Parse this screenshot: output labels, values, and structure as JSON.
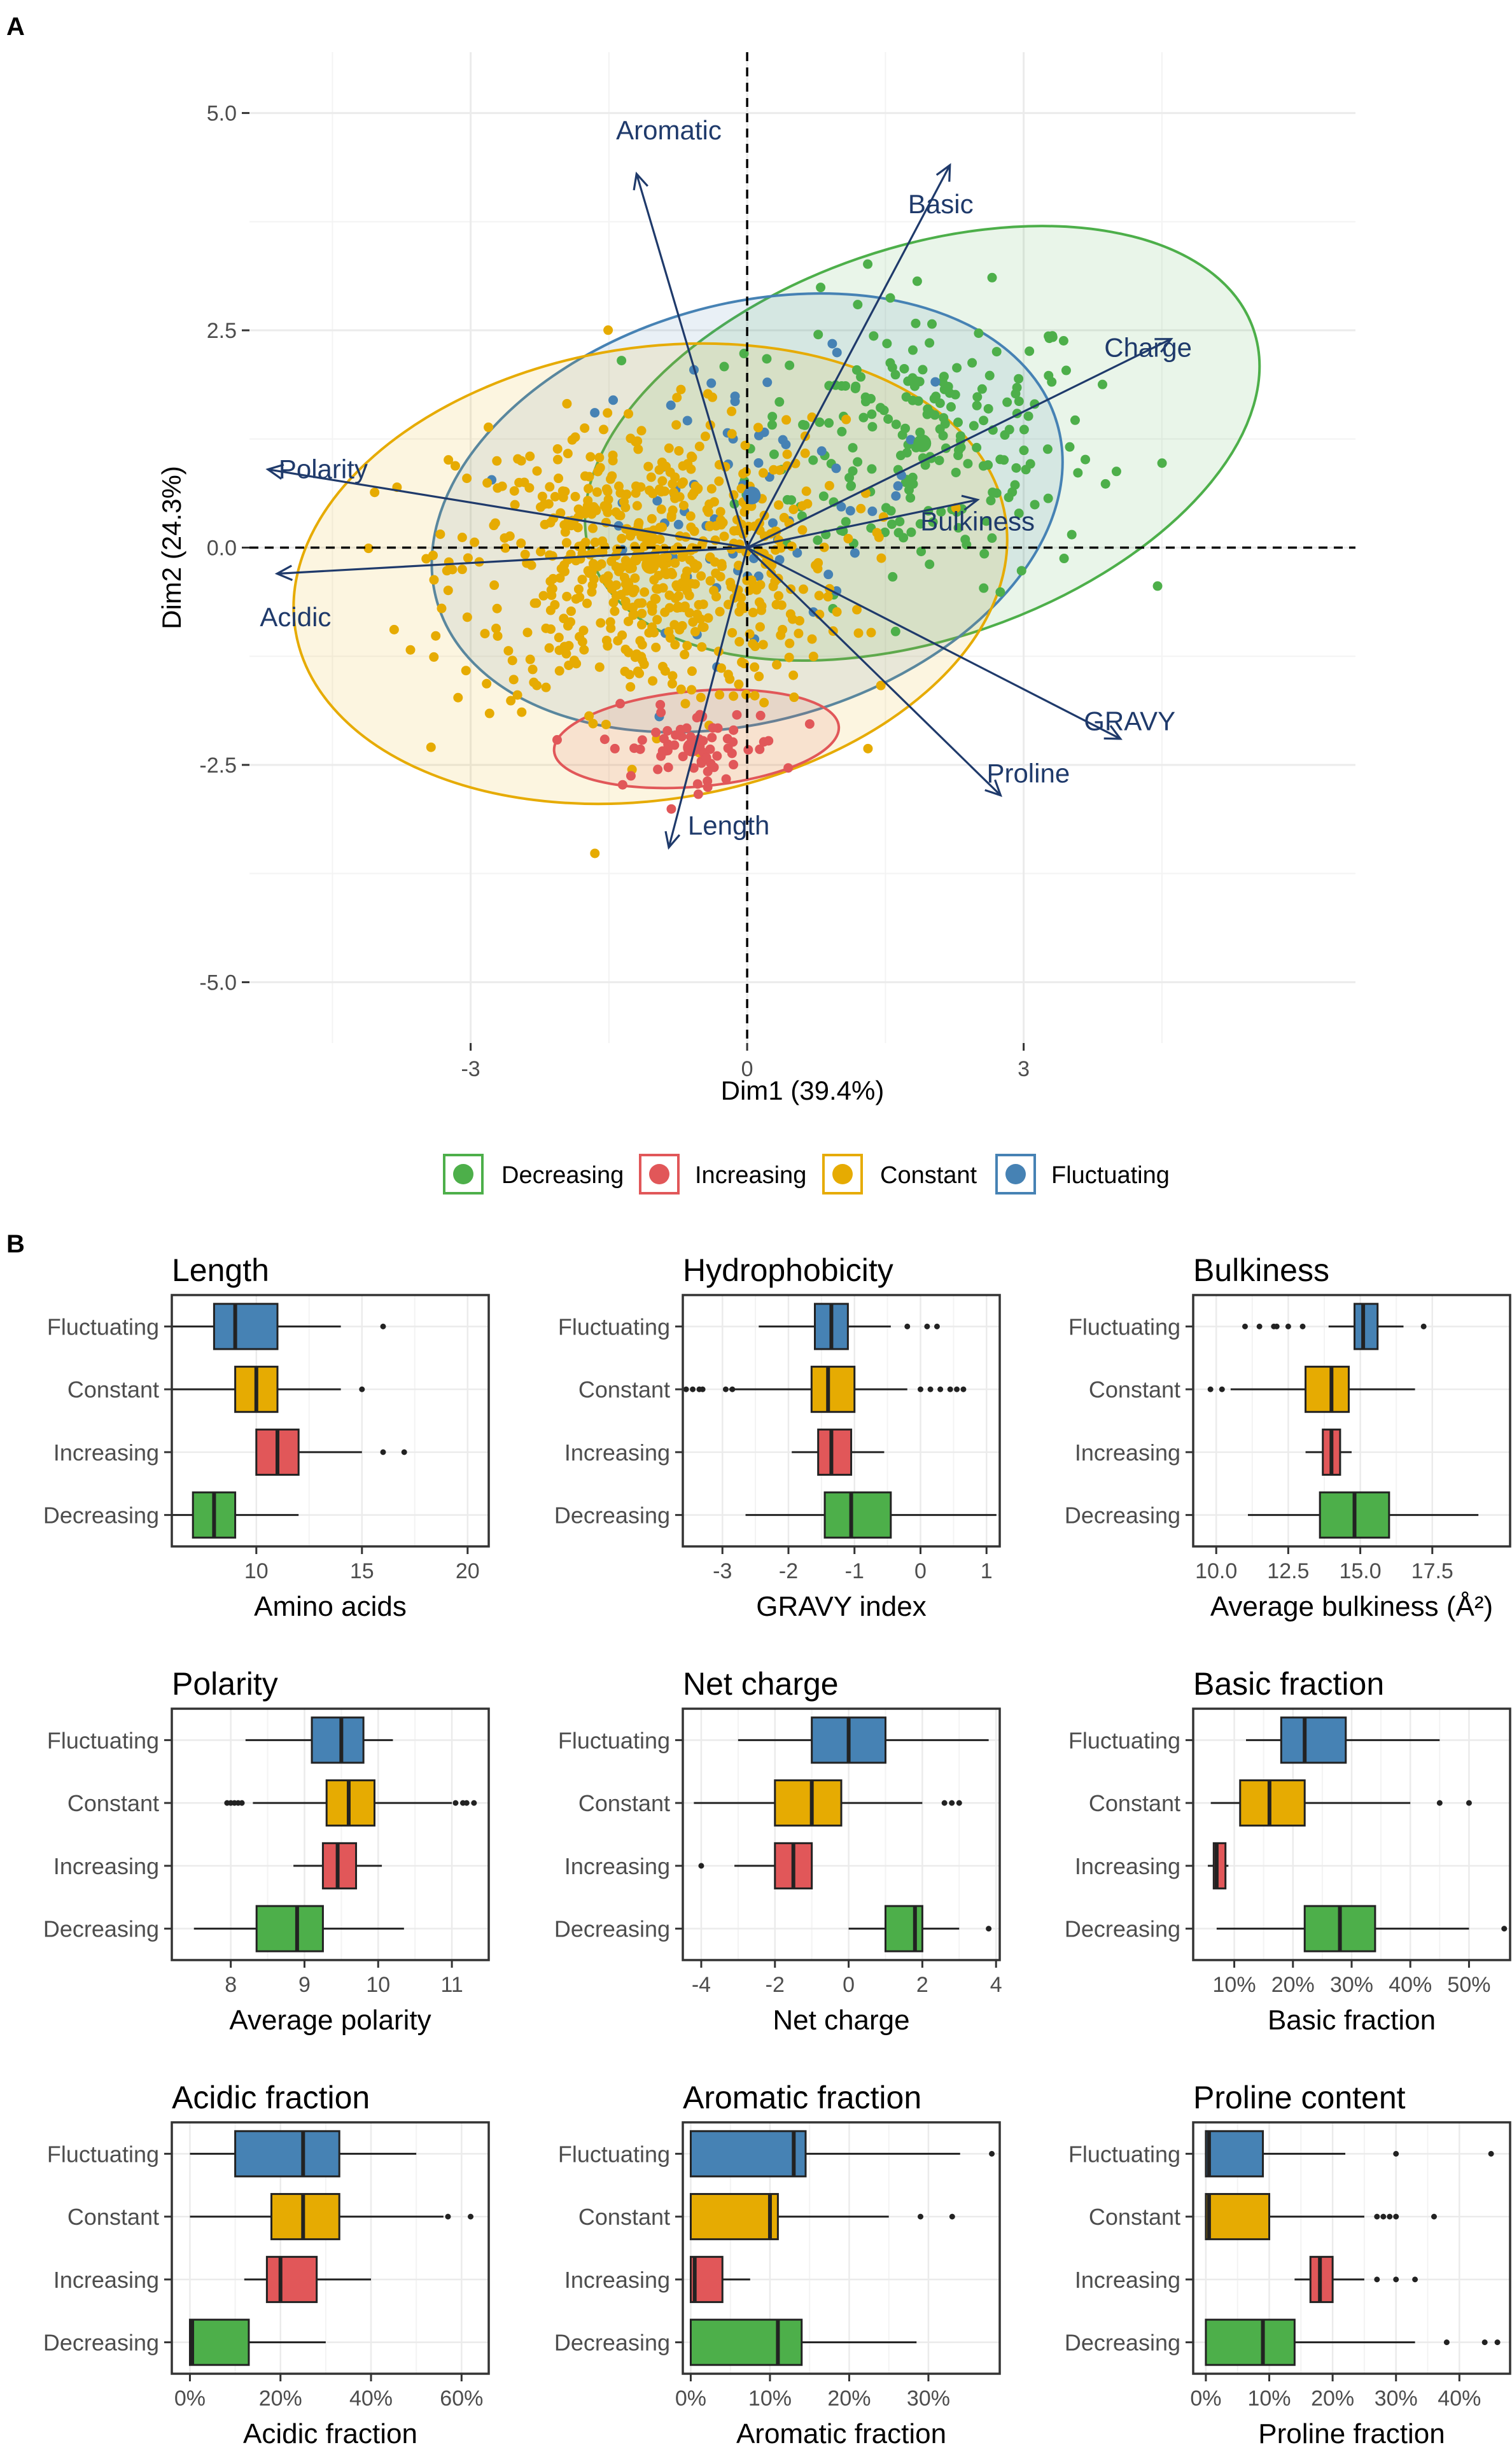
{
  "colors": {
    "Decreasing": "#4daf4a",
    "Increasing": "#e15759",
    "Constant": "#e6ab02",
    "Fluctuating": "#4682b4",
    "arrow": "#1f3a6b",
    "grid": "#ebebeb"
  },
  "panels": {
    "a": "A",
    "b": "B"
  },
  "legend": {
    "items": [
      "Decreasing",
      "Increasing",
      "Constant",
      "Fluctuating"
    ]
  },
  "chart_data": [
    {
      "type": "scatter",
      "title": "",
      "xlabel": "Dim1 (39.4%)",
      "ylabel": "Dim2 (24.3%)",
      "xlim": [
        -5.4,
        6.6
      ],
      "ylim": [
        -5.7,
        5.7
      ],
      "xticks": [
        -3,
        0,
        3
      ],
      "xtick_labels": [
        "-3",
        "0",
        "3"
      ],
      "yticks": [
        5.0,
        2.5,
        0.0,
        -2.5,
        -5.0
      ],
      "ytick_labels": [
        "5.0",
        "2.5",
        "0.0",
        "-2.5",
        "-5.0"
      ],
      "loadings": [
        {
          "label": "Aromatic",
          "x": -1.2,
          "y": 4.3
        },
        {
          "label": "Basic",
          "x": 2.2,
          "y": 4.4
        },
        {
          "label": "Charge",
          "x": 4.6,
          "y": 2.4
        },
        {
          "label": "Bulkiness",
          "x": 2.5,
          "y": 0.55
        },
        {
          "label": "GRAVY",
          "x": 4.05,
          "y": -2.2
        },
        {
          "label": "Proline",
          "x": 2.75,
          "y": -2.85
        },
        {
          "label": "Length",
          "x": -0.85,
          "y": -3.45
        },
        {
          "label": "Polarity",
          "x": -5.2,
          "y": 0.9
        },
        {
          "label": "Acidic",
          "x": -5.1,
          "y": -0.3
        }
      ],
      "groups": [
        {
          "name": "Decreasing",
          "center": [
            1.9,
            1.2
          ],
          "n": 230,
          "spread": [
            1.25,
            1.1
          ]
        },
        {
          "name": "Increasing",
          "center": [
            -0.6,
            -2.3
          ],
          "n": 70,
          "spread": [
            0.65,
            0.3
          ]
        },
        {
          "name": "Constant",
          "center": [
            -1.05,
            -0.2
          ],
          "n": 650,
          "spread": [
            1.4,
            1.1
          ]
        },
        {
          "name": "Fluctuating",
          "center": [
            0.05,
            0.6
          ],
          "n": 70,
          "spread": [
            1.3,
            1.0
          ]
        }
      ],
      "ellipses": [
        {
          "group": "Decreasing",
          "cx": 1.9,
          "cy": 1.2,
          "rx": 3.8,
          "ry": 2.25,
          "angle_deg": -19
        },
        {
          "group": "Fluctuating",
          "cx": 0.0,
          "cy": 0.4,
          "rx": 3.5,
          "ry": 2.4,
          "angle_deg": -16
        },
        {
          "group": "Constant",
          "cx": -1.05,
          "cy": -0.3,
          "rx": 3.9,
          "ry": 2.6,
          "angle_deg": -9
        },
        {
          "group": "Increasing",
          "cx": -0.55,
          "cy": -2.2,
          "rx": 1.55,
          "ry": 0.55,
          "angle_deg": -5
        }
      ]
    },
    {
      "type": "box",
      "title": "Length",
      "xlabel": "Amino acids",
      "xlim": [
        6,
        21
      ],
      "xticks": [
        10,
        15,
        20
      ],
      "xtick_labels": [
        "10",
        "15",
        "20"
      ],
      "categories": [
        "Fluctuating",
        "Constant",
        "Increasing",
        "Decreasing"
      ],
      "boxes": [
        {
          "group": "Fluctuating",
          "min": 6,
          "q1": 8,
          "median": 9,
          "q3": 11,
          "max": 14,
          "outliers": [
            16
          ]
        },
        {
          "group": "Constant",
          "min": 6,
          "q1": 9,
          "median": 10,
          "q3": 11,
          "max": 14,
          "outliers": [
            15
          ]
        },
        {
          "group": "Increasing",
          "min": 10,
          "q1": 10,
          "median": 11,
          "q3": 12,
          "max": 15,
          "outliers": [
            16,
            17
          ]
        },
        {
          "group": "Decreasing",
          "min": 6,
          "q1": 7,
          "median": 8,
          "q3": 9,
          "max": 12,
          "outliers": []
        }
      ]
    },
    {
      "type": "box",
      "title": "Hydrophobicity",
      "xlabel": "GRAVY index",
      "xlim": [
        -3.6,
        1.2
      ],
      "xticks": [
        -3,
        -2,
        -1,
        0,
        1
      ],
      "xtick_labels": [
        "-3",
        "-2",
        "-1",
        "0",
        "1"
      ],
      "categories": [
        "Fluctuating",
        "Constant",
        "Increasing",
        "Decreasing"
      ],
      "boxes": [
        {
          "group": "Fluctuating",
          "min": -2.45,
          "q1": -1.6,
          "median": -1.35,
          "q3": -1.1,
          "max": -0.45,
          "outliers": [
            -0.2,
            0.1,
            0.25
          ]
        },
        {
          "group": "Constant",
          "min": -2.9,
          "q1": -1.65,
          "median": -1.4,
          "q3": -1.0,
          "max": -0.2,
          "outliers": [
            -3.55,
            -3.45,
            -3.35,
            -3.3,
            -2.95,
            -2.85,
            0.0,
            0.15,
            0.3,
            0.45,
            0.55,
            0.65
          ]
        },
        {
          "group": "Increasing",
          "min": -1.95,
          "q1": -1.55,
          "median": -1.35,
          "q3": -1.05,
          "max": -0.55,
          "outliers": []
        },
        {
          "group": "Decreasing",
          "min": -2.65,
          "q1": -1.45,
          "median": -1.05,
          "q3": -0.45,
          "max": 1.15,
          "outliers": []
        }
      ]
    },
    {
      "type": "box",
      "title": "Bulkiness",
      "xlabel": "Average bulkiness (Å²)",
      "xlim": [
        9.2,
        20.2
      ],
      "xticks": [
        10.0,
        12.5,
        15.0,
        17.5
      ],
      "xtick_labels": [
        "10.0",
        "12.5",
        "15.0",
        "17.5"
      ],
      "categories": [
        "Fluctuating",
        "Constant",
        "Increasing",
        "Decreasing"
      ],
      "boxes": [
        {
          "group": "Fluctuating",
          "min": 13.9,
          "q1": 14.8,
          "median": 15.1,
          "q3": 15.6,
          "max": 16.5,
          "outliers": [
            11.0,
            11.5,
            12.0,
            12.1,
            12.5,
            13.0,
            17.2
          ]
        },
        {
          "group": "Constant",
          "min": 10.5,
          "q1": 13.1,
          "median": 14.0,
          "q3": 14.6,
          "max": 16.9,
          "outliers": [
            9.8,
            10.2
          ]
        },
        {
          "group": "Increasing",
          "min": 13.1,
          "q1": 13.7,
          "median": 14.0,
          "q3": 14.3,
          "max": 14.7,
          "outliers": []
        },
        {
          "group": "Decreasing",
          "min": 11.1,
          "q1": 13.6,
          "median": 14.8,
          "q3": 16.0,
          "max": 19.1,
          "outliers": []
        }
      ]
    },
    {
      "type": "box",
      "title": "Polarity",
      "xlabel": "Average polarity",
      "xlim": [
        7.2,
        11.5
      ],
      "xticks": [
        8,
        9,
        10,
        11
      ],
      "xtick_labels": [
        "8",
        "9",
        "10",
        "11"
      ],
      "categories": [
        "Fluctuating",
        "Constant",
        "Increasing",
        "Decreasing"
      ],
      "boxes": [
        {
          "group": "Fluctuating",
          "min": 8.2,
          "q1": 9.1,
          "median": 9.5,
          "q3": 9.8,
          "max": 10.2,
          "outliers": []
        },
        {
          "group": "Constant",
          "min": 8.3,
          "q1": 9.3,
          "median": 9.6,
          "q3": 9.95,
          "max": 11.0,
          "outliers": [
            7.95,
            8.0,
            8.05,
            8.1,
            8.15,
            11.05,
            11.15,
            11.2,
            11.3
          ]
        },
        {
          "group": "Increasing",
          "min": 8.85,
          "q1": 9.25,
          "median": 9.45,
          "q3": 9.7,
          "max": 10.05,
          "outliers": []
        },
        {
          "group": "Decreasing",
          "min": 7.5,
          "q1": 8.35,
          "median": 8.9,
          "q3": 9.25,
          "max": 10.35,
          "outliers": []
        }
      ]
    },
    {
      "type": "box",
      "title": "Net charge",
      "xlabel": "Net charge",
      "xlim": [
        -4.5,
        4.1
      ],
      "xticks": [
        -4,
        -2,
        0,
        2,
        4
      ],
      "xtick_labels": [
        "-4",
        "-2",
        "0",
        "2",
        "4"
      ],
      "categories": [
        "Fluctuating",
        "Constant",
        "Increasing",
        "Decreasing"
      ],
      "boxes": [
        {
          "group": "Fluctuating",
          "min": -3.0,
          "q1": -1.0,
          "median": 0.0,
          "q3": 1.0,
          "max": 3.8,
          "outliers": []
        },
        {
          "group": "Constant",
          "min": -4.2,
          "q1": -2.0,
          "median": -1.0,
          "q3": -0.2,
          "max": 2.0,
          "outliers": [
            2.6,
            2.8,
            3.0
          ]
        },
        {
          "group": "Increasing",
          "min": -3.1,
          "q1": -2.0,
          "median": -1.5,
          "q3": -1.0,
          "max": -1.0,
          "outliers": [
            -4.0
          ]
        },
        {
          "group": "Decreasing",
          "min": 0.0,
          "q1": 1.0,
          "median": 1.8,
          "q3": 2.0,
          "max": 3.0,
          "outliers": [
            3.8
          ]
        }
      ]
    },
    {
      "type": "box",
      "title": "Basic fraction",
      "xlabel": "Basic fraction",
      "xlim": [
        3,
        57
      ],
      "xticks": [
        10,
        20,
        30,
        40,
        50
      ],
      "xtick_labels": [
        "10%",
        "20%",
        "30%",
        "40%",
        "50%"
      ],
      "categories": [
        "Fluctuating",
        "Constant",
        "Increasing",
        "Decreasing"
      ],
      "boxes": [
        {
          "group": "Fluctuating",
          "min": 12,
          "q1": 18,
          "median": 22,
          "q3": 29,
          "max": 45,
          "outliers": []
        },
        {
          "group": "Constant",
          "min": 6,
          "q1": 11,
          "median": 16,
          "q3": 22,
          "max": 40,
          "outliers": [
            45,
            50
          ]
        },
        {
          "group": "Increasing",
          "min": 5.5,
          "q1": 6.5,
          "median": 7,
          "q3": 8.5,
          "max": 9,
          "outliers": []
        },
        {
          "group": "Decreasing",
          "min": 7,
          "q1": 22,
          "median": 28,
          "q3": 34,
          "max": 50,
          "outliers": [
            56
          ]
        }
      ]
    },
    {
      "type": "box",
      "title": "Acidic fraction",
      "xlabel": "Acidic fraction",
      "xlim": [
        -4,
        66
      ],
      "xticks": [
        0,
        20,
        40,
        60
      ],
      "xtick_labels": [
        "0%",
        "20%",
        "40%",
        "60%"
      ],
      "categories": [
        "Fluctuating",
        "Constant",
        "Increasing",
        "Decreasing"
      ],
      "boxes": [
        {
          "group": "Fluctuating",
          "min": 0,
          "q1": 10,
          "median": 25,
          "q3": 33,
          "max": 50,
          "outliers": []
        },
        {
          "group": "Constant",
          "min": 0,
          "q1": 18,
          "median": 25,
          "q3": 33,
          "max": 56,
          "outliers": [
            57,
            62
          ]
        },
        {
          "group": "Increasing",
          "min": 12,
          "q1": 17,
          "median": 20,
          "q3": 28,
          "max": 40,
          "outliers": []
        },
        {
          "group": "Decreasing",
          "min": 0,
          "q1": 0,
          "median": 0.5,
          "q3": 13,
          "max": 30,
          "outliers": []
        }
      ]
    },
    {
      "type": "box",
      "title": "Aromatic fraction",
      "xlabel": "Aromatic fraction",
      "xlim": [
        -1,
        39
      ],
      "xticks": [
        0,
        10,
        20,
        30
      ],
      "xtick_labels": [
        "0%",
        "10%",
        "20%",
        "30%"
      ],
      "categories": [
        "Fluctuating",
        "Constant",
        "Increasing",
        "Decreasing"
      ],
      "boxes": [
        {
          "group": "Fluctuating",
          "min": 0,
          "q1": 0,
          "median": 13,
          "q3": 14.5,
          "max": 34,
          "outliers": [
            38
          ]
        },
        {
          "group": "Constant",
          "min": 0,
          "q1": 0,
          "median": 10,
          "q3": 11,
          "max": 25,
          "outliers": [
            29,
            33
          ]
        },
        {
          "group": "Increasing",
          "min": 0,
          "q1": 0,
          "median": 0.5,
          "q3": 4,
          "max": 7.5,
          "outliers": []
        },
        {
          "group": "Decreasing",
          "min": 0,
          "q1": 0,
          "median": 11,
          "q3": 14,
          "max": 28.5,
          "outliers": []
        }
      ]
    },
    {
      "type": "box",
      "title": "Proline content",
      "xlabel": "Proline fraction",
      "xlim": [
        -2,
        48
      ],
      "xticks": [
        0,
        10,
        20,
        30,
        40
      ],
      "xtick_labels": [
        "0%",
        "10%",
        "20%",
        "30%",
        "40%"
      ],
      "categories": [
        "Fluctuating",
        "Constant",
        "Increasing",
        "Decreasing"
      ],
      "boxes": [
        {
          "group": "Fluctuating",
          "min": 0,
          "q1": 0,
          "median": 0.5,
          "q3": 9,
          "max": 22,
          "outliers": [
            30,
            45
          ]
        },
        {
          "group": "Constant",
          "min": 0,
          "q1": 0,
          "median": 0.5,
          "q3": 10,
          "max": 25,
          "outliers": [
            27,
            28,
            29,
            30,
            36
          ]
        },
        {
          "group": "Increasing",
          "min": 14,
          "q1": 16.5,
          "median": 18,
          "q3": 20,
          "max": 25,
          "outliers": [
            27,
            30,
            33
          ]
        },
        {
          "group": "Decreasing",
          "min": 0,
          "q1": 0,
          "median": 9,
          "q3": 14,
          "max": 33,
          "outliers": [
            38,
            44,
            46
          ]
        }
      ]
    }
  ]
}
